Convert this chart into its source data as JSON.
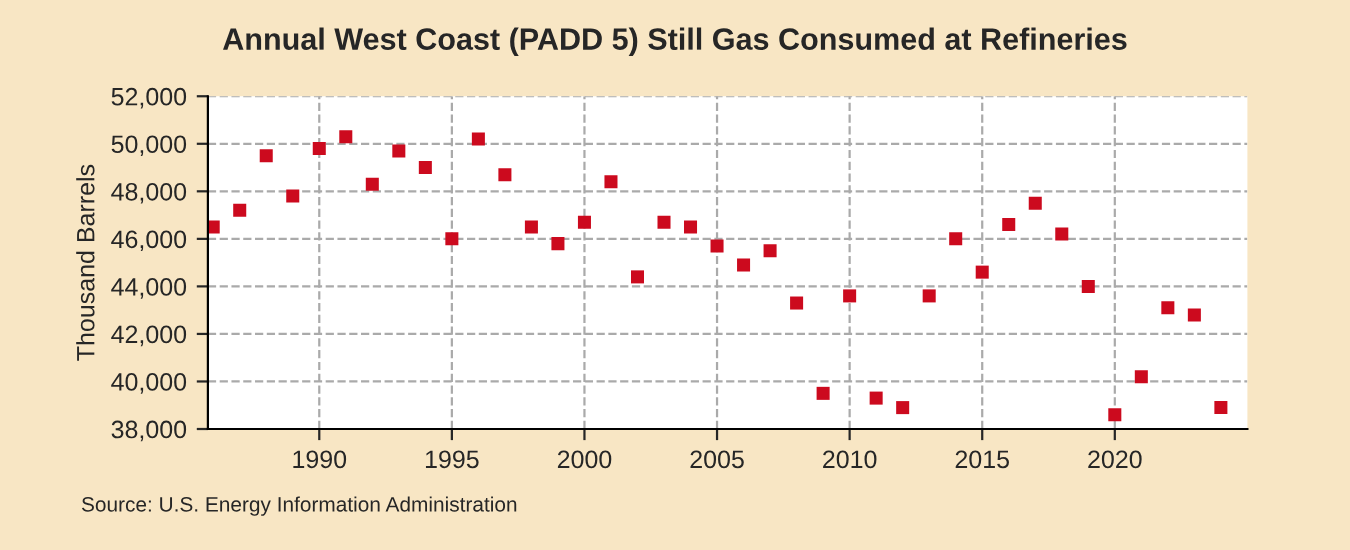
{
  "chart_data": {
    "type": "scatter",
    "title": "Annual West Coast (PADD 5) Still Gas Consumed at Refineries",
    "ylabel": "Thousand Barrels",
    "x": [
      1986,
      1987,
      1988,
      1989,
      1990,
      1991,
      1992,
      1993,
      1994,
      1995,
      1996,
      1997,
      1998,
      1999,
      2000,
      2001,
      2002,
      2003,
      2004,
      2005,
      2006,
      2007,
      2008,
      2009,
      2010,
      2011,
      2012,
      2013,
      2014,
      2015,
      2016,
      2017,
      2018,
      2019,
      2020,
      2021,
      2022,
      2023,
      2024
    ],
    "series": [
      {
        "color": "#cc0a1e",
        "values": [
          46500,
          47200,
          49500,
          47800,
          49800,
          50300,
          48300,
          49700,
          49000,
          46000,
          50200,
          48700,
          46500,
          45800,
          46700,
          48400,
          44400,
          46700,
          46500,
          45700,
          44900,
          45500,
          43300,
          39500,
          43600,
          39300,
          38900,
          43600,
          46000,
          44600,
          46600,
          47500,
          46200,
          44000,
          38600,
          40200,
          43100,
          42800,
          38900
        ]
      }
    ],
    "xlim": [
      1985.8,
      2025
    ],
    "xticks": [
      1990,
      1995,
      2000,
      2005,
      2010,
      2015,
      2020
    ],
    "ylim": [
      38000,
      52000
    ],
    "yticks": [
      {
        "value": 38000,
        "label": "38,000"
      },
      {
        "value": 40000,
        "label": "40,000"
      },
      {
        "value": 42000,
        "label": "42,000"
      },
      {
        "value": 44000,
        "label": "44,000"
      },
      {
        "value": 46000,
        "label": "46,000"
      },
      {
        "value": 48000,
        "label": "48,000"
      },
      {
        "value": 50000,
        "label": "50,000"
      },
      {
        "value": 52000,
        "label": "52,000"
      }
    ],
    "grid": true,
    "marker": "square",
    "legend": false,
    "annotations": [
      "Source: U.S. Energy Information Administration"
    ]
  }
}
